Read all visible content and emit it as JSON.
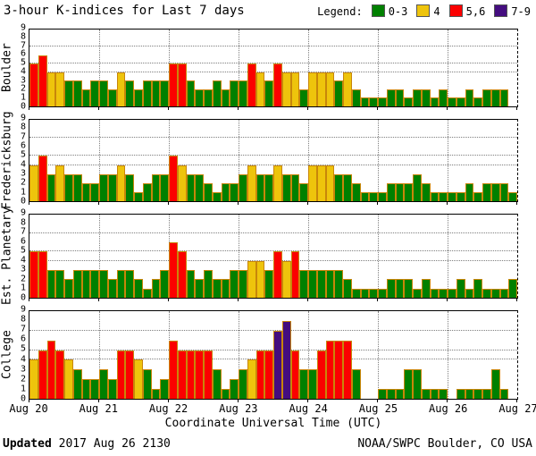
{
  "header": {
    "title": "3-hour K-indices for Last 7 days",
    "legend_label": "Legend:"
  },
  "footer": {
    "xaxis_title": "Coordinate Universal Time (UTC)",
    "updated_label": "Updated",
    "updated_value": "2017 Aug 26 2130",
    "credit": "NOAA/SWPC Boulder, CO USA"
  },
  "chart_data": {
    "type": "bar",
    "title": "3-hour K-indices for Last 7 days",
    "xlabel": "Coordinate Universal Time (UTC)",
    "ylim": [
      0,
      9
    ],
    "y_gridlines": [
      4,
      5,
      7
    ],
    "y_tick_labels": [
      "9",
      "8",
      "7",
      "6",
      "5",
      "4",
      "3",
      "2",
      "1",
      "0"
    ],
    "x_tick_labels": [
      "Aug 20",
      "Aug 21",
      "Aug 22",
      "Aug 23",
      "Aug 24",
      "Aug 25",
      "Aug 26",
      "Aug 27"
    ],
    "bars_per_day": 8,
    "grid": "dotted day boundaries vertical; dotted K=4,5,7 horizontal; dashed right border",
    "legend_position": "top-right",
    "legend": [
      {
        "label": "0-3",
        "color": "#008000"
      },
      {
        "label": "4",
        "color": "#eec40c"
      },
      {
        "label": "5,6",
        "color": "#fb0000"
      },
      {
        "label": "7-9",
        "color": "#440d7f"
      }
    ],
    "color_scale": [
      {
        "max": 3,
        "color": "#008000"
      },
      {
        "max": 4,
        "color": "#eec40c"
      },
      {
        "max": 6,
        "color": "#fb0000"
      },
      {
        "max": 9,
        "color": "#440d7f"
      }
    ],
    "bar_border_color": "#c8860a",
    "series": [
      {
        "name": "Boulder",
        "values": [
          5,
          6,
          4,
          4,
          3,
          3,
          2,
          3,
          3,
          2,
          4,
          3,
          2,
          3,
          3,
          3,
          5,
          5,
          3,
          2,
          2,
          3,
          2,
          3,
          3,
          5,
          4,
          3,
          5,
          4,
          4,
          2,
          4,
          4,
          4,
          3,
          4,
          2,
          1,
          1,
          1,
          2,
          2,
          1,
          2,
          2,
          1,
          2,
          1,
          1,
          2,
          1,
          2,
          2,
          2,
          0
        ]
      },
      {
        "name": "Fredericksburg",
        "values": [
          4,
          5,
          3,
          4,
          3,
          3,
          2,
          2,
          3,
          3,
          4,
          3,
          1,
          2,
          3,
          3,
          5,
          4,
          3,
          3,
          2,
          1,
          2,
          2,
          3,
          4,
          3,
          3,
          4,
          3,
          3,
          2,
          4,
          4,
          4,
          3,
          3,
          2,
          1,
          1,
          1,
          2,
          2,
          2,
          3,
          2,
          1,
          1,
          1,
          1,
          2,
          1,
          2,
          2,
          2,
          1
        ]
      },
      {
        "name": "Est. Planetary",
        "values": [
          5,
          5,
          3,
          3,
          2,
          3,
          3,
          3,
          3,
          2,
          3,
          3,
          2,
          1,
          2,
          3,
          6,
          5,
          3,
          2,
          3,
          2,
          2,
          3,
          3,
          4,
          4,
          3,
          5,
          4,
          5,
          3,
          3,
          3,
          3,
          3,
          2,
          1,
          1,
          1,
          1,
          2,
          2,
          2,
          1,
          2,
          1,
          1,
          1,
          2,
          1,
          2,
          1,
          1,
          1,
          2
        ]
      },
      {
        "name": "College",
        "values": [
          4,
          5,
          6,
          5,
          4,
          3,
          2,
          2,
          3,
          2,
          5,
          5,
          4,
          3,
          1,
          2,
          6,
          5,
          5,
          5,
          5,
          3,
          1,
          2,
          3,
          4,
          5,
          5,
          7,
          8,
          5,
          3,
          3,
          5,
          6,
          6,
          6,
          3,
          0,
          0,
          1,
          1,
          1,
          3,
          3,
          1,
          1,
          1,
          0,
          1,
          1,
          1,
          1,
          3,
          1,
          0
        ]
      }
    ]
  }
}
